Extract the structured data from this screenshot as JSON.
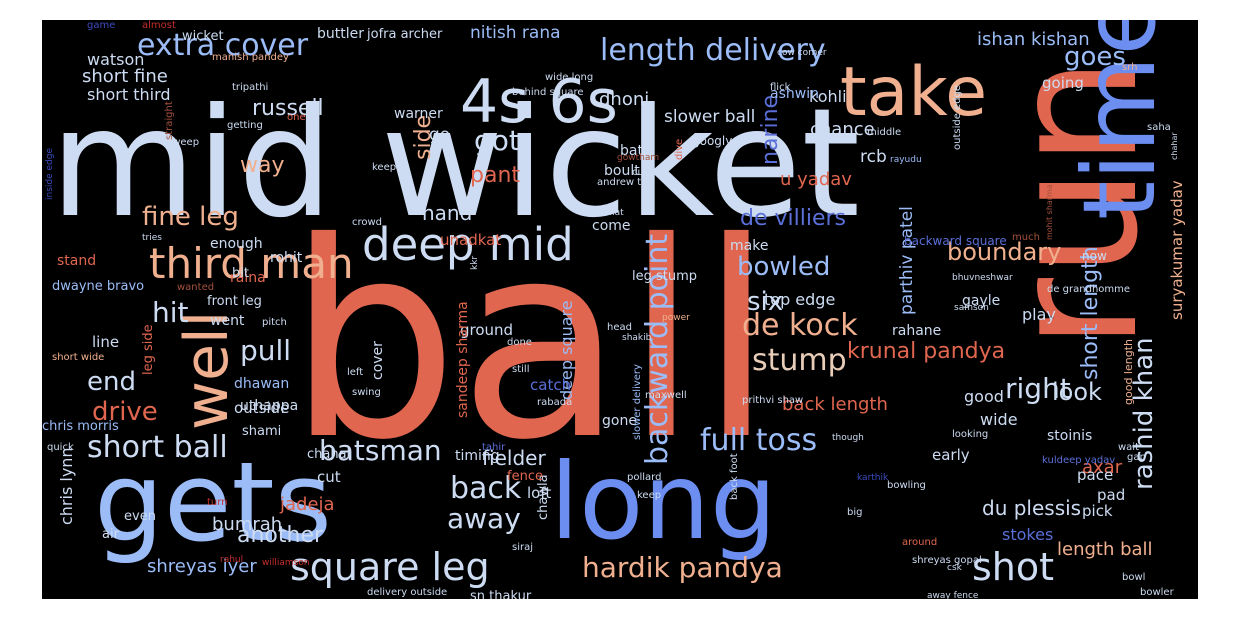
{
  "palette": {
    "pale_blue": "#cddcf2",
    "light_blue": "#9bbcf7",
    "blue": "#6b8ef0",
    "indigo": "#5a6fd8",
    "salmon": "#e0664f",
    "peach": "#f0b08f",
    "tan": "#e8cdb8",
    "red": "#c52e2b",
    "brown": "#a3513c",
    "navy": "#3b4cc0"
  },
  "words": [
    {
      "text": "ball"
    },
    {
      "text": "mid wicket"
    },
    {
      "text": "run"
    },
    {
      "text": "gets"
    },
    {
      "text": "long"
    },
    {
      "text": "time"
    },
    {
      "text": "take"
    },
    {
      "text": "4s 6s"
    },
    {
      "text": "deep mid"
    },
    {
      "text": "well"
    },
    {
      "text": "square leg"
    },
    {
      "text": "third man"
    },
    {
      "text": "extra cover"
    },
    {
      "text": "length delivery"
    },
    {
      "text": "shot"
    },
    {
      "text": "rashid khan"
    },
    {
      "text": "hardik pandya"
    },
    {
      "text": "backward point"
    },
    {
      "text": "full toss"
    },
    {
      "text": "stump"
    },
    {
      "text": "de kock"
    },
    {
      "text": "short ball"
    },
    {
      "text": "batsman"
    },
    {
      "text": "back"
    },
    {
      "text": "away"
    },
    {
      "text": "fine leg"
    },
    {
      "text": "got"
    },
    {
      "text": "pull"
    },
    {
      "text": "hit"
    },
    {
      "text": "drive"
    },
    {
      "text": "end"
    },
    {
      "text": "right"
    },
    {
      "text": "boundary"
    },
    {
      "text": "bowled"
    },
    {
      "text": "six"
    },
    {
      "text": "krunal pandya"
    },
    {
      "text": "short length"
    },
    {
      "text": "side"
    },
    {
      "text": "pant"
    },
    {
      "text": "narine"
    },
    {
      "text": "goes"
    },
    {
      "text": "russell"
    },
    {
      "text": "short fine"
    },
    {
      "text": "de villiers"
    },
    {
      "text": "hand"
    },
    {
      "text": "look"
    },
    {
      "text": "fielder"
    },
    {
      "text": "suryakumar yadav"
    },
    {
      "text": "du plessis"
    },
    {
      "text": "deep square"
    },
    {
      "text": "parthiv patel"
    },
    {
      "text": "way"
    },
    {
      "text": "another"
    },
    {
      "text": "shreyas iyer"
    },
    {
      "text": "length ball"
    },
    {
      "text": "back length"
    },
    {
      "text": "stokes"
    },
    {
      "text": "chris lynn"
    },
    {
      "text": "bumrah"
    },
    {
      "text": "jadeja"
    },
    {
      "text": "axar"
    },
    {
      "text": "ishan kishan"
    },
    {
      "text": "nitish rana"
    },
    {
      "text": "dhoni"
    },
    {
      "text": "kohli"
    },
    {
      "text": "u yadav"
    },
    {
      "text": "chance"
    },
    {
      "text": "slower ball"
    },
    {
      "text": "ashwin"
    },
    {
      "text": "going"
    },
    {
      "text": "watson"
    },
    {
      "text": "short third"
    },
    {
      "text": "warner"
    },
    {
      "text": "go"
    },
    {
      "text": "bat"
    },
    {
      "text": "boult"
    },
    {
      "text": "googly"
    },
    {
      "text": "rcb"
    },
    {
      "text": "rohit"
    },
    {
      "text": "unadkat"
    },
    {
      "text": "come"
    },
    {
      "text": "make"
    },
    {
      "text": "top edge"
    },
    {
      "text": "play"
    },
    {
      "text": "gayle"
    },
    {
      "text": "rahane"
    },
    {
      "text": "stand"
    },
    {
      "text": "enough"
    },
    {
      "text": "dwayne bravo"
    },
    {
      "text": "raina"
    },
    {
      "text": "front leg"
    },
    {
      "text": "went"
    },
    {
      "text": "bit"
    },
    {
      "text": "leg stump"
    },
    {
      "text": "ground"
    },
    {
      "text": "line"
    },
    {
      "text": "leg side"
    },
    {
      "text": "dhawan"
    },
    {
      "text": "uthappa"
    },
    {
      "text": "outside"
    },
    {
      "text": "catch"
    },
    {
      "text": "sandeep sharma"
    },
    {
      "text": "cover"
    },
    {
      "text": "good"
    },
    {
      "text": "wide"
    },
    {
      "text": "stoinis"
    },
    {
      "text": "chris morris"
    },
    {
      "text": "shami"
    },
    {
      "text": "gone"
    },
    {
      "text": "chawla"
    },
    {
      "text": "timing"
    },
    {
      "text": "fence"
    },
    {
      "text": "cut"
    },
    {
      "text": "chahal"
    },
    {
      "text": "loft"
    },
    {
      "text": "early"
    },
    {
      "text": "pace"
    },
    {
      "text": "pick"
    },
    {
      "text": "pad"
    },
    {
      "text": "even"
    },
    {
      "text": "sn thakur"
    },
    {
      "text": "air"
    },
    {
      "text": "backward square"
    },
    {
      "text": "now"
    },
    {
      "text": "good length"
    },
    {
      "text": "buttler"
    },
    {
      "text": "jofra archer"
    },
    {
      "text": "wicket"
    },
    {
      "text": "game"
    },
    {
      "text": "almost"
    },
    {
      "text": "manish pandey"
    },
    {
      "text": "tripathi"
    },
    {
      "text": "straight"
    },
    {
      "text": "getting"
    },
    {
      "text": "sweep"
    },
    {
      "text": "one"
    },
    {
      "text": "keeper"
    },
    {
      "text": "inside edge"
    },
    {
      "text": "gowtham"
    },
    {
      "text": "cutting"
    },
    {
      "text": "andrew tye"
    },
    {
      "text": "dive"
    },
    {
      "text": "flick"
    },
    {
      "text": "middle"
    },
    {
      "text": "behind square"
    },
    {
      "text": "wide long"
    },
    {
      "text": "cow corner"
    },
    {
      "text": "srh"
    },
    {
      "text": "saha"
    },
    {
      "text": "chahar"
    },
    {
      "text": "outside edge"
    },
    {
      "text": "rayudu"
    },
    {
      "text": "mohit sharma"
    },
    {
      "text": "crowd"
    },
    {
      "text": "much"
    },
    {
      "text": "flat"
    },
    {
      "text": "tries"
    },
    {
      "text": "kkr"
    },
    {
      "text": "head"
    },
    {
      "text": "shakib"
    },
    {
      "text": "done"
    },
    {
      "text": "still"
    },
    {
      "text": "power"
    },
    {
      "text": "bhuvneshwar"
    },
    {
      "text": "samson"
    },
    {
      "text": "de grandhomme"
    },
    {
      "text": "wanted"
    },
    {
      "text": "pitch"
    },
    {
      "text": "left"
    },
    {
      "text": "swing"
    },
    {
      "text": "short wide"
    },
    {
      "text": "rabada"
    },
    {
      "text": "maxwell"
    },
    {
      "text": "prithvi shaw"
    },
    {
      "text": "though"
    },
    {
      "text": "looking"
    },
    {
      "text": "wait"
    },
    {
      "text": "tahir"
    },
    {
      "text": "quick"
    },
    {
      "text": "turn"
    },
    {
      "text": "slower delivery"
    },
    {
      "text": "pollard"
    },
    {
      "text": "karthik"
    },
    {
      "text": "kuldeep yadav"
    },
    {
      "text": "gap"
    },
    {
      "text": "bowling"
    },
    {
      "text": "keep"
    },
    {
      "text": "back foot"
    },
    {
      "text": "big"
    },
    {
      "text": "rahul"
    },
    {
      "text": "williamson"
    },
    {
      "text": "siraj"
    },
    {
      "text": "delivery outside"
    },
    {
      "text": "around"
    },
    {
      "text": "csk"
    },
    {
      "text": "shreyas gopal"
    },
    {
      "text": "away fence"
    },
    {
      "text": "bowl"
    },
    {
      "text": "bowler"
    }
  ]
}
